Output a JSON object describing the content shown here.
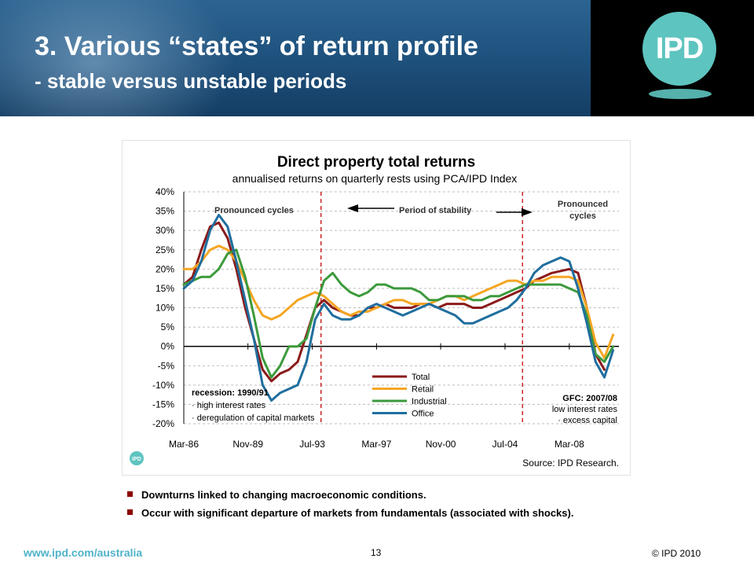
{
  "slide": {
    "title_line1": "3. Various “states” of return profile",
    "title_line2": "- stable versus unstable periods",
    "logo_text": "IPD",
    "bullets": [
      "Downturns linked to changing macroeconomic conditions.",
      "Occur  with significant departure of markets from fundamentals (associated with shocks)."
    ],
    "footer_url": "www.ipd.com/australia",
    "page_number": "13",
    "copyright": "© IPD  2010"
  },
  "chart_data": {
    "type": "line",
    "title": "Direct property  total returns",
    "subtitle": "annualised returns on quarterly rests using PCA/IPD Index",
    "source": "Source: IPD Research.",
    "small_logo_text": "IPD",
    "ylim": [
      -20,
      40
    ],
    "yticks": [
      40,
      35,
      30,
      25,
      20,
      15,
      10,
      5,
      0,
      -5,
      -10,
      -15,
      -20
    ],
    "ytick_labels": [
      "40%",
      "35%",
      "30%",
      "25%",
      "20%",
      "15%",
      "10%",
      "5%",
      "0%",
      "-5%",
      "-10%",
      "-15%",
      "-20%"
    ],
    "xlim": [
      1986.17,
      2011.0
    ],
    "xticks": [
      1986.17,
      1989.83,
      1993.5,
      1997.17,
      2000.83,
      2004.5,
      2008.17
    ],
    "xtick_labels": [
      "Mar-86",
      "Nov-89",
      "Jul-93",
      "Mar-97",
      "Nov-00",
      "Jul-04",
      "Mar-08"
    ],
    "grid": true,
    "legend_position": "bottom-center",
    "divider_dates": [
      1994.0,
      2005.5
    ],
    "annotations": {
      "left": "Pronounced cycles",
      "middle": "Period of stability",
      "right_line1": "Pronounced",
      "right_line2": "cycles",
      "recession_title": "recession: 1990/91",
      "recession_item1": "· high interest rates",
      "recession_item2": "· deregulation of capital markets",
      "gfc_title": "GFC: 2007/08",
      "gfc_item1": "low interest rates",
      "gfc_item2": "· excess capital"
    },
    "series": [
      {
        "name": "Total",
        "color": "#8b1a1a",
        "x": [
          1986.17,
          1986.67,
          1987.17,
          1987.67,
          1988.17,
          1988.67,
          1989.17,
          1989.67,
          1990.17,
          1990.67,
          1991.17,
          1991.67,
          1992.17,
          1992.67,
          1993.17,
          1993.67,
          1994.17,
          1994.67,
          1995.17,
          1995.67,
          1996.17,
          1996.67,
          1997.17,
          1997.67,
          1998.17,
          1998.67,
          1999.17,
          1999.67,
          2000.17,
          2000.67,
          2001.17,
          2001.67,
          2002.17,
          2002.67,
          2003.17,
          2003.67,
          2004.17,
          2004.67,
          2005.17,
          2005.67,
          2006.17,
          2006.67,
          2007.17,
          2007.67,
          2008.17,
          2008.67,
          2009.17,
          2009.67,
          2010.17
        ],
        "y": [
          16,
          18,
          25,
          31,
          32,
          28,
          20,
          10,
          2,
          -6,
          -9,
          -7,
          -6,
          -4,
          3,
          10,
          12,
          10,
          9,
          8,
          8,
          10,
          10,
          11,
          10,
          10,
          10,
          11,
          11,
          10,
          11,
          11,
          11,
          10,
          10,
          11,
          12,
          13,
          14,
          15,
          17,
          18,
          19,
          19.5,
          20,
          19,
          10,
          -2,
          -6
        ]
      },
      {
        "name": "Retail",
        "color": "#f5a623",
        "x": [
          1986.17,
          1986.67,
          1987.17,
          1987.67,
          1988.17,
          1988.67,
          1989.17,
          1989.67,
          1990.17,
          1990.67,
          1991.17,
          1991.67,
          1992.17,
          1992.67,
          1993.17,
          1993.67,
          1994.17,
          1994.67,
          1995.17,
          1995.67,
          1996.17,
          1996.67,
          1997.17,
          1997.67,
          1998.17,
          1998.67,
          1999.17,
          1999.67,
          2000.17,
          2000.67,
          2001.17,
          2001.67,
          2002.17,
          2002.67,
          2003.17,
          2003.67,
          2004.17,
          2004.67,
          2005.17,
          2005.67,
          2006.17,
          2006.67,
          2007.17,
          2007.67,
          2008.17,
          2008.67,
          2009.17,
          2009.67,
          2010.17,
          2010.67
        ],
        "y": [
          20,
          20,
          22,
          25,
          26,
          25,
          22,
          17,
          12,
          8,
          7,
          8,
          10,
          12,
          13,
          14,
          13,
          11,
          9,
          8,
          9,
          9,
          10,
          11,
          12,
          12,
          11,
          11,
          11,
          12,
          13,
          13,
          12,
          13,
          14,
          15,
          16,
          17,
          17,
          16,
          17,
          17,
          18,
          18,
          18,
          17,
          10,
          1,
          -3,
          3
        ]
      },
      {
        "name": "Industrial",
        "color": "#3c9a3c",
        "x": [
          1986.17,
          1986.67,
          1987.17,
          1987.67,
          1988.17,
          1988.67,
          1989.17,
          1989.67,
          1990.17,
          1990.67,
          1991.17,
          1991.67,
          1992.17,
          1992.67,
          1993.17,
          1993.67,
          1994.17,
          1994.67,
          1995.17,
          1995.67,
          1996.17,
          1996.67,
          1997.17,
          1997.67,
          1998.17,
          1998.67,
          1999.17,
          1999.67,
          2000.17,
          2000.67,
          2001.17,
          2001.67,
          2002.17,
          2002.67,
          2003.17,
          2003.67,
          2004.17,
          2004.67,
          2005.17,
          2005.67,
          2006.17,
          2006.67,
          2007.17,
          2007.67,
          2008.17,
          2008.67,
          2009.17,
          2009.67,
          2010.17,
          2010.67
        ],
        "y": [
          16,
          17,
          18,
          18,
          20,
          24,
          25,
          18,
          8,
          -3,
          -8,
          -5,
          0,
          0,
          2,
          10,
          17,
          19,
          16,
          14,
          13,
          14,
          16,
          16,
          15,
          15,
          15,
          14,
          12,
          12,
          13,
          13,
          13,
          12,
          12,
          13,
          13,
          14,
          15,
          16,
          16,
          16,
          16,
          16,
          15,
          14,
          8,
          -2,
          -4,
          0
        ]
      },
      {
        "name": "Office",
        "color": "#1f6e9e",
        "x": [
          1986.17,
          1986.67,
          1987.17,
          1987.67,
          1988.17,
          1988.67,
          1989.17,
          1989.67,
          1990.17,
          1990.67,
          1991.17,
          1991.67,
          1992.17,
          1992.67,
          1993.17,
          1993.67,
          1994.17,
          1994.67,
          1995.17,
          1995.67,
          1996.17,
          1996.67,
          1997.17,
          1997.67,
          1998.17,
          1998.67,
          1999.17,
          1999.67,
          2000.17,
          2000.67,
          2001.17,
          2001.67,
          2002.17,
          2002.67,
          2003.17,
          2003.67,
          2004.17,
          2004.67,
          2005.17,
          2005.67,
          2006.17,
          2006.67,
          2007.17,
          2007.67,
          2008.17,
          2008.67,
          2009.17,
          2009.67,
          2010.17,
          2010.67
        ],
        "y": [
          15,
          17,
          22,
          30,
          34,
          31,
          22,
          12,
          2,
          -10,
          -14,
          -12,
          -11,
          -10,
          -4,
          7,
          11,
          8,
          7,
          7,
          8,
          10,
          11,
          10,
          9,
          8,
          9,
          10,
          11,
          10,
          9,
          8,
          6,
          6,
          7,
          8,
          9,
          10,
          12,
          15,
          19,
          21,
          22,
          23,
          22,
          15,
          6,
          -4,
          -8,
          -1
        ]
      }
    ]
  }
}
